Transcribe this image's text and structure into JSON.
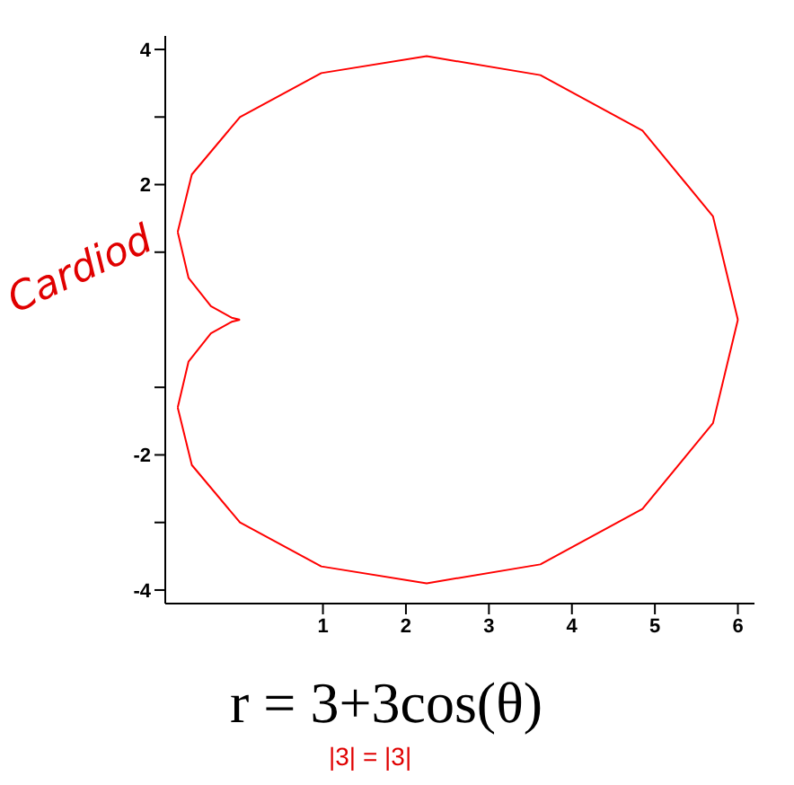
{
  "chart_data": {
    "type": "line",
    "title": "r = 3+3cos(θ)",
    "annotations": [
      "Cardiod",
      "|3| = |3|"
    ],
    "series": [
      {
        "color": "#ff0000",
        "x": [
          6,
          5.7,
          4.85,
          3.62,
          2.25,
          0.98,
          0,
          -0.58,
          -0.75
        ],
        "values": [
          0,
          1.53,
          2.8,
          3.62,
          3.9,
          3.65,
          3,
          2.15,
          1.3
        ]
      },
      {
        "color": "#ff0000",
        "x": [
          -0.75,
          -0.62,
          -0.35,
          -0.1,
          0
        ],
        "values": [
          1.3,
          0.62,
          0.2,
          0.03,
          0
        ]
      },
      {
        "color": "#ff0000",
        "x": [
          -0.75,
          -0.62,
          -0.35,
          -0.1,
          0
        ],
        "values": [
          -1.3,
          -0.62,
          -0.2,
          -0.03,
          0
        ]
      },
      {
        "color": "#ff0000",
        "x": [
          6,
          5.7,
          4.85,
          3.62,
          2.25,
          0.98,
          0,
          -0.58,
          -0.75
        ],
        "values": [
          0,
          -1.53,
          -2.8,
          -3.62,
          -3.9,
          -3.65,
          -3,
          -2.15,
          -1.3
        ]
      }
    ],
    "xlim": [
      -0.9,
      6.2
    ],
    "xticks": [
      1,
      2,
      3,
      4,
      5,
      6
    ],
    "ylim": [
      -4.2,
      4.2
    ],
    "yticks": [
      -4,
      {
        "value": -3,
        "label": null
      },
      -2,
      {
        "value": -1,
        "label": null
      },
      {
        "value": 1,
        "label": null
      },
      2,
      {
        "value": 3,
        "label": null
      },
      4
    ],
    "grid": false,
    "legend": false,
    "marker": "none",
    "line_style": "solid"
  }
}
